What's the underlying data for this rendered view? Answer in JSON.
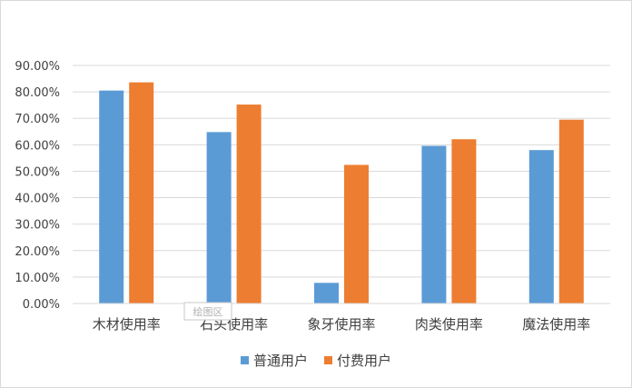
{
  "chart_data": {
    "type": "bar",
    "categories": [
      "木材使用率",
      "石头使用率",
      "象牙使用率",
      "肉类使用率",
      "魔法使用率"
    ],
    "series": [
      {
        "name": "普通用户",
        "color": "#5b9bd5",
        "values": [
          0.805,
          0.648,
          0.078,
          0.596,
          0.58
        ]
      },
      {
        "name": "付费用户",
        "color": "#ed7d31",
        "values": [
          0.836,
          0.752,
          0.524,
          0.621,
          0.695
        ]
      }
    ],
    "ylim": [
      0,
      0.9
    ],
    "yticks": [
      "0.00%",
      "10.00%",
      "20.00%",
      "30.00%",
      "40.00%",
      "50.00%",
      "60.00%",
      "70.00%",
      "80.00%",
      "90.00%"
    ],
    "grid": true,
    "legend_position": "bottom",
    "watermark": "绘图区"
  }
}
